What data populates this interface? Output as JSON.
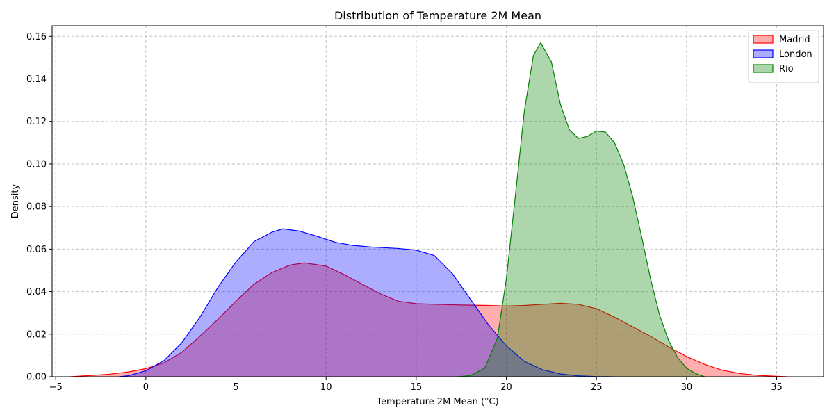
{
  "chart_data": {
    "type": "area",
    "title": "Distribution of Temperature 2M Mean",
    "xlabel": "Temperature 2M Mean (°C)",
    "ylabel": "Density",
    "xlim": [
      -5.2,
      37.6
    ],
    "ylim": [
      0,
      0.165
    ],
    "xticks": [
      -5,
      0,
      5,
      10,
      15,
      20,
      25,
      30,
      35
    ],
    "xtick_labels": [
      "−5",
      "0",
      "5",
      "10",
      "15",
      "20",
      "25",
      "30",
      "35"
    ],
    "yticks": [
      0,
      0.02,
      0.04,
      0.06,
      0.08,
      0.1,
      0.12,
      0.14,
      0.16
    ],
    "ytick_labels": [
      "0.00",
      "0.02",
      "0.04",
      "0.06",
      "0.08",
      "0.10",
      "0.12",
      "0.14",
      "0.16"
    ],
    "grid": true,
    "legend_position": "top-right",
    "series": [
      {
        "name": "Madrid",
        "color": "#ff0000",
        "points": [
          [
            -4.2,
            0
          ],
          [
            -3,
            0.0006
          ],
          [
            -2,
            0.0012
          ],
          [
            -1,
            0.0022
          ],
          [
            0,
            0.0038
          ],
          [
            1,
            0.0065
          ],
          [
            2,
            0.0115
          ],
          [
            3,
            0.019
          ],
          [
            4,
            0.027
          ],
          [
            5,
            0.0355
          ],
          [
            6,
            0.0435
          ],
          [
            7,
            0.049
          ],
          [
            8,
            0.0525
          ],
          [
            8.8,
            0.0535
          ],
          [
            10,
            0.052
          ],
          [
            11,
            0.048
          ],
          [
            12,
            0.0435
          ],
          [
            13,
            0.039
          ],
          [
            14,
            0.0355
          ],
          [
            15,
            0.0343
          ],
          [
            17,
            0.0338
          ],
          [
            18,
            0.0336
          ],
          [
            19,
            0.0335
          ],
          [
            20,
            0.0332
          ],
          [
            21,
            0.0335
          ],
          [
            22,
            0.034
          ],
          [
            23,
            0.0345
          ],
          [
            24,
            0.034
          ],
          [
            25,
            0.032
          ],
          [
            26,
            0.028
          ],
          [
            27,
            0.0235
          ],
          [
            28,
            0.019
          ],
          [
            29,
            0.014
          ],
          [
            30,
            0.0095
          ],
          [
            31,
            0.0058
          ],
          [
            32,
            0.003
          ],
          [
            33,
            0.0015
          ],
          [
            34,
            0.0006
          ],
          [
            35,
            0.0002
          ],
          [
            35.6,
            0
          ]
        ]
      },
      {
        "name": "London",
        "color": "#0000ff",
        "points": [
          [
            -1.5,
            0
          ],
          [
            -1,
            0.0004
          ],
          [
            0,
            0.0028
          ],
          [
            1,
            0.0075
          ],
          [
            2,
            0.016
          ],
          [
            3,
            0.028
          ],
          [
            4,
            0.042
          ],
          [
            5,
            0.054
          ],
          [
            6,
            0.0635
          ],
          [
            7,
            0.068
          ],
          [
            7.6,
            0.0695
          ],
          [
            8.5,
            0.0685
          ],
          [
            9.5,
            0.066
          ],
          [
            10.5,
            0.0632
          ],
          [
            11.5,
            0.0617
          ],
          [
            12.5,
            0.061
          ],
          [
            14,
            0.0603
          ],
          [
            15,
            0.0595
          ],
          [
            16,
            0.057
          ],
          [
            17,
            0.0485
          ],
          [
            18,
            0.0365
          ],
          [
            19,
            0.0245
          ],
          [
            20,
            0.0145
          ],
          [
            21,
            0.0072
          ],
          [
            22,
            0.0033
          ],
          [
            23,
            0.0013
          ],
          [
            24,
            0.0004
          ],
          [
            25,
            0.0001
          ],
          [
            26,
            0
          ]
        ]
      },
      {
        "name": "Rio",
        "color": "#008000",
        "points": [
          [
            17.3,
            0
          ],
          [
            18,
            0.0005
          ],
          [
            18.8,
            0.004
          ],
          [
            19.5,
            0.018
          ],
          [
            20,
            0.046
          ],
          [
            20.5,
            0.085
          ],
          [
            21,
            0.125
          ],
          [
            21.5,
            0.151
          ],
          [
            21.9,
            0.157
          ],
          [
            22.5,
            0.148
          ],
          [
            23,
            0.128
          ],
          [
            23.5,
            0.116
          ],
          [
            24,
            0.112
          ],
          [
            24.5,
            0.113
          ],
          [
            25,
            0.1155
          ],
          [
            25.5,
            0.115
          ],
          [
            26,
            0.11
          ],
          [
            26.5,
            0.1
          ],
          [
            27,
            0.085
          ],
          [
            27.5,
            0.066
          ],
          [
            28,
            0.046
          ],
          [
            28.5,
            0.029
          ],
          [
            29,
            0.017
          ],
          [
            29.5,
            0.009
          ],
          [
            30,
            0.004
          ],
          [
            30.5,
            0.0015
          ],
          [
            31,
            0
          ]
        ]
      }
    ]
  }
}
